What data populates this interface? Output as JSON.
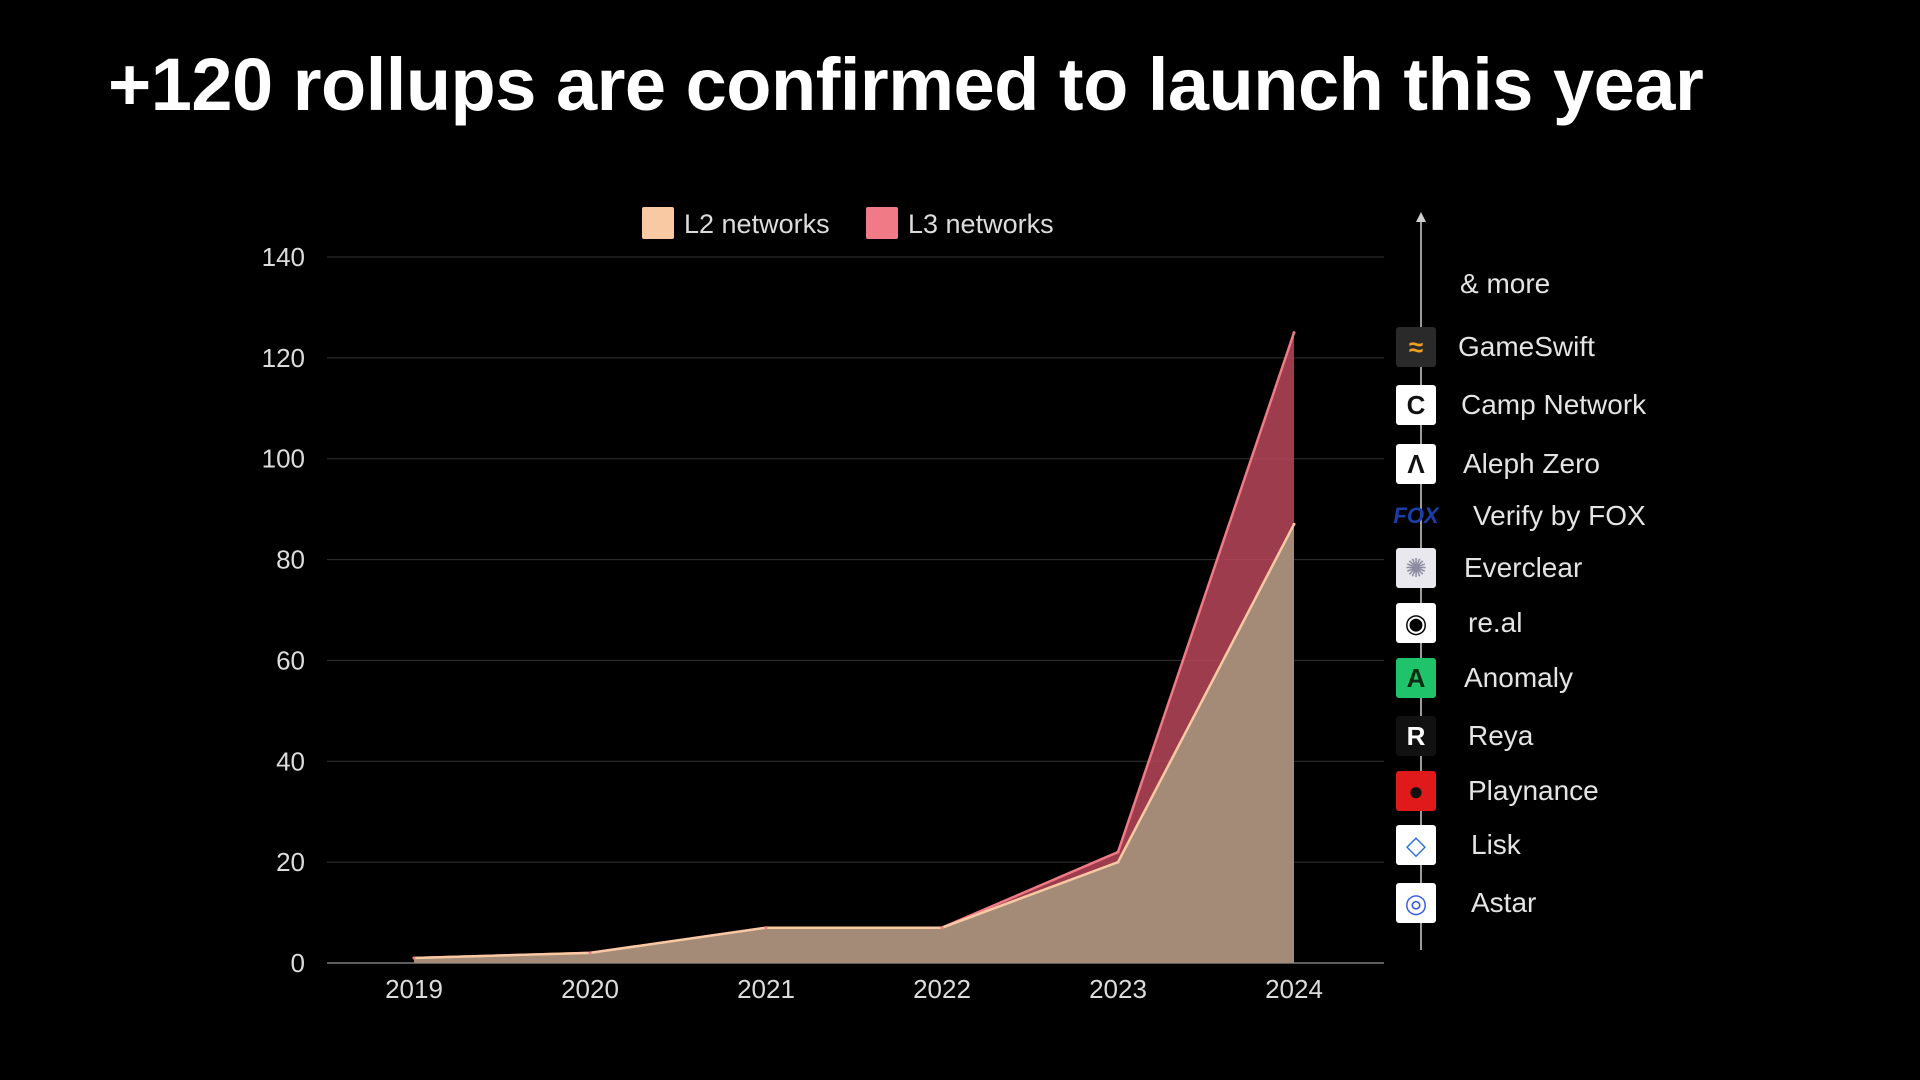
{
  "title": "+120 rollups are confirmed to launch this year",
  "chart_data": {
    "type": "area",
    "stacked": true,
    "categories": [
      "2019",
      "2020",
      "2021",
      "2022",
      "2023",
      "2024"
    ],
    "series": [
      {
        "name": "L2 networks",
        "values": [
          1,
          2,
          7,
          7,
          20,
          87
        ],
        "color": "#f9c9a3"
      },
      {
        "name": "L3 networks",
        "values": [
          0,
          0,
          0,
          0,
          2,
          38
        ],
        "color": "#f07a85"
      }
    ],
    "totals": [
      1,
      2,
      7,
      7,
      22,
      125
    ],
    "ylim": [
      0,
      140
    ],
    "yticks": [
      0,
      20,
      40,
      60,
      80,
      100,
      120,
      140
    ],
    "grid": true,
    "legend": "top-center"
  },
  "legend_items": [
    {
      "label": "L2 networks",
      "color": "#f9c9a3"
    },
    {
      "label": "L3 networks",
      "color": "#f07a85"
    }
  ],
  "rollups": {
    "more_label": "& more",
    "items": [
      {
        "name": "GameSwift",
        "icon": "gameswift-logo-icon",
        "bg": "#2a2a2a",
        "fg": "#f0a020",
        "glyph": "≈"
      },
      {
        "name": "Camp Network",
        "icon": "camp-network-logo-icon",
        "bg": "#ffffff",
        "fg": "#111111",
        "glyph": "C"
      },
      {
        "name": "Aleph Zero",
        "icon": "aleph-zero-logo-icon",
        "bg": "#ffffff",
        "fg": "#111111",
        "glyph": "Λ"
      },
      {
        "name": "Verify by FOX",
        "icon": "fox-logo-icon",
        "bg": "transparent",
        "fg": "#1a3fa8",
        "glyph": "FOX"
      },
      {
        "name": "Everclear",
        "icon": "everclear-logo-icon",
        "bg": "#e8e8ee",
        "fg": "#8a8aa0",
        "glyph": "✺"
      },
      {
        "name": "re.al",
        "icon": "real-logo-icon",
        "bg": "#ffffff",
        "fg": "#000000",
        "glyph": "◉"
      },
      {
        "name": "Anomaly",
        "icon": "anomaly-logo-icon",
        "bg": "#1fc46a",
        "fg": "#0a2a14",
        "glyph": "A"
      },
      {
        "name": "Reya",
        "icon": "reya-logo-icon",
        "bg": "#111111",
        "fg": "#ffffff",
        "glyph": "R"
      },
      {
        "name": "Playnance",
        "icon": "playnance-logo-icon",
        "bg": "#e01a1a",
        "fg": "#111111",
        "glyph": "●"
      },
      {
        "name": "Lisk",
        "icon": "lisk-logo-icon",
        "bg": "#ffffff",
        "fg": "#2a6fdc",
        "glyph": "◇"
      },
      {
        "name": "Astar",
        "icon": "astar-logo-icon",
        "bg": "#ffffff",
        "fg": "#3a5be8",
        "glyph": "◎"
      }
    ]
  }
}
